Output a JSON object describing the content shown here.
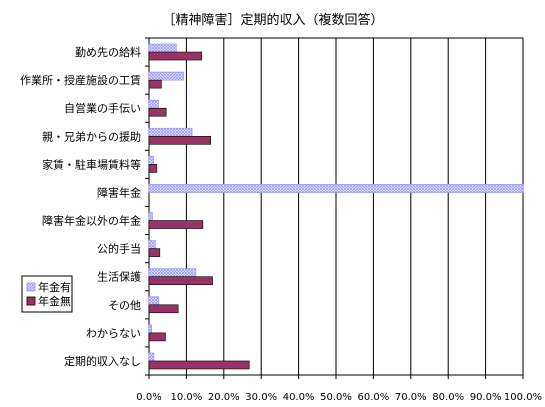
{
  "chart_data": {
    "type": "bar",
    "orientation": "horizontal",
    "title": "［精神障害］定期的収入（複数回答）",
    "categories": [
      "勤め先の給料",
      "作業所・授産施設の工賃",
      "自営業の手伝い",
      "親・兄弟からの援助",
      "家賃・駐車場賃料等",
      "障害年金",
      "障害年金以外の年金",
      "公的手当",
      "生活保護",
      "その他",
      "わからない",
      "定期的収入なし"
    ],
    "series": [
      {
        "name": "年金有",
        "values": [
          7.3,
          9.2,
          2.5,
          11.5,
          1.2,
          100.0,
          0.9,
          1.7,
          12.5,
          2.6,
          0.7,
          1.3
        ],
        "color": "#9999ff",
        "pattern": "crosshatch"
      },
      {
        "name": "年金無",
        "values": [
          14.1,
          3.3,
          4.6,
          16.5,
          2.1,
          0.0,
          14.4,
          2.9,
          17.0,
          7.8,
          4.4,
          26.8
        ],
        "color": "#993366"
      }
    ],
    "xlim": [
      0,
      100
    ],
    "xticks": [
      "0.0%",
      "10.0%",
      "20.0%",
      "30.0%",
      "40.0%",
      "50.0%",
      "60.0%",
      "70.0%",
      "80.0%",
      "90.0%",
      "100.0%"
    ],
    "grid": true,
    "legend_position": "left"
  }
}
